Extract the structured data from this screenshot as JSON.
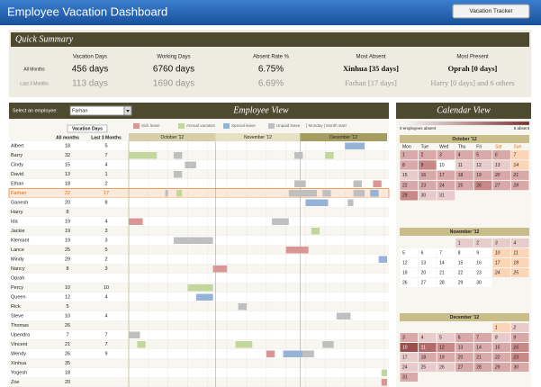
{
  "header": {
    "title": "Employee Vacation Dashboard",
    "button": "Vacation Tracker"
  },
  "summary": {
    "title": "Quick Summary",
    "row_labels": [
      "All Months",
      "Last 3 Months"
    ],
    "columns": [
      {
        "heading": "Vacation Days",
        "values": [
          "456 days",
          "113 days"
        ]
      },
      {
        "heading": "Working Days",
        "values": [
          "6760 days",
          "1690 days"
        ]
      },
      {
        "heading": "Absent Rate %",
        "values": [
          "6.75%",
          "6.69%"
        ]
      },
      {
        "heading": "Most Absent",
        "values": [
          "Xinhua [35 days]",
          "Farhan [17 days]"
        ]
      },
      {
        "heading": "Most Present",
        "values": [
          "Oprah [0 days]",
          "Harry [0 days] and 6 others"
        ]
      }
    ]
  },
  "employee_view": {
    "title": "Employee View",
    "select_label": "Select an employee:",
    "selected": "Farhan",
    "legend": [
      {
        "name": "Sick leave",
        "color": "#d99694"
      },
      {
        "name": "Annual vacation",
        "color": "#c3d69b"
      },
      {
        "name": "Special leave",
        "color": "#95b3d7"
      },
      {
        "name": "Unpaid leave",
        "color": "#bfbfbf"
      }
    ],
    "legend_note": "[ Monday | Month start",
    "table_title": "Vacation Days",
    "columns": [
      "All months",
      "Last 3 Months"
    ],
    "months": [
      "October '12",
      "November '12",
      "December '12"
    ],
    "rows": [
      {
        "name": "Albert",
        "all": 18,
        "last3": 5,
        "leaves": [
          [
            2,
            77,
            7
          ]
        ]
      },
      {
        "name": "Barry",
        "all": 32,
        "last3": 7,
        "leaves": [
          [
            1,
            0,
            10
          ],
          [
            3,
            16,
            3
          ],
          [
            3,
            59,
            3
          ],
          [
            1,
            70,
            3
          ]
        ]
      },
      {
        "name": "Cindy",
        "all": 15,
        "last3": 4,
        "leaves": [
          [
            3,
            20,
            4
          ]
        ]
      },
      {
        "name": "David",
        "all": 13,
        "last3": 1,
        "leaves": [
          [
            3,
            16,
            3
          ]
        ]
      },
      {
        "name": "Ethan",
        "all": 18,
        "last3": 2,
        "leaves": [
          [
            3,
            59,
            4
          ],
          [
            3,
            80,
            3
          ],
          [
            0,
            87,
            3
          ]
        ]
      },
      {
        "name": "Farhan",
        "all": 22,
        "last3": 17,
        "leaves": [
          [
            3,
            13,
            1
          ],
          [
            1,
            17,
            2
          ],
          [
            3,
            57,
            10
          ],
          [
            3,
            69,
            3
          ],
          [
            3,
            80,
            4
          ],
          [
            2,
            86,
            3
          ]
        ]
      },
      {
        "name": "Ganesh",
        "all": 20,
        "last3": 8,
        "leaves": [
          [
            2,
            63,
            8
          ],
          [
            3,
            78,
            2
          ]
        ]
      },
      {
        "name": "Harry",
        "all": 8,
        "last3": null,
        "leaves": []
      },
      {
        "name": "Ida",
        "all": 19,
        "last3": 4,
        "leaves": [
          [
            0,
            0,
            5
          ],
          [
            3,
            51,
            6
          ]
        ]
      },
      {
        "name": "Jackie",
        "all": 19,
        "last3": 3,
        "leaves": [
          [
            1,
            65,
            3
          ]
        ]
      },
      {
        "name": "Klemant",
        "all": 19,
        "last3": 3,
        "leaves": [
          [
            3,
            16,
            14
          ]
        ]
      },
      {
        "name": "Lance",
        "all": 25,
        "last3": 5,
        "leaves": [
          [
            0,
            56,
            8
          ]
        ]
      },
      {
        "name": "Mindy",
        "all": 29,
        "last3": 2,
        "leaves": [
          [
            2,
            89,
            3
          ]
        ]
      },
      {
        "name": "Nancy",
        "all": 8,
        "last3": 3,
        "leaves": [
          [
            0,
            30,
            5
          ]
        ]
      },
      {
        "name": "Oprah",
        "all": null,
        "last3": null,
        "leaves": []
      },
      {
        "name": "Percy",
        "all": 10,
        "last3": 10,
        "leaves": [
          [
            1,
            21,
            9
          ]
        ]
      },
      {
        "name": "Queen",
        "all": 12,
        "last3": 4,
        "leaves": [
          [
            2,
            24,
            6
          ]
        ]
      },
      {
        "name": "Rick",
        "all": 5,
        "last3": null,
        "leaves": [
          [
            3,
            39,
            3
          ]
        ]
      },
      {
        "name": "Steve",
        "all": 10,
        "last3": 4,
        "leaves": [
          [
            3,
            74,
            5
          ]
        ]
      },
      {
        "name": "Thomas",
        "all": 26,
        "last3": null,
        "leaves": []
      },
      {
        "name": "Upendra",
        "all": 7,
        "last3": 7,
        "leaves": [
          [
            3,
            0,
            4
          ]
        ]
      },
      {
        "name": "Vincent",
        "all": 21,
        "last3": 7,
        "leaves": [
          [
            1,
            3,
            3
          ],
          [
            1,
            38,
            6
          ],
          [
            3,
            69,
            4
          ]
        ]
      },
      {
        "name": "Wendy",
        "all": 26,
        "last3": 9,
        "leaves": [
          [
            0,
            49,
            3
          ],
          [
            2,
            55,
            7
          ],
          [
            3,
            62,
            4
          ]
        ]
      },
      {
        "name": "Xinhua",
        "all": 35,
        "last3": null,
        "leaves": []
      },
      {
        "name": "Yogesh",
        "all": 18,
        "last3": null,
        "leaves": [
          [
            1,
            90,
            2
          ]
        ]
      },
      {
        "name": "Zoe",
        "all": 20,
        "last3": null,
        "leaves": [
          [
            0,
            90,
            2
          ]
        ]
      }
    ]
  },
  "calendar": {
    "title": "Calendar View",
    "scale": [
      "0 employees absent",
      "6 absent"
    ],
    "weekdays": [
      "Mon",
      "Tue",
      "Wed",
      "Thu",
      "Fri",
      "Sat",
      "Sun"
    ],
    "months": [
      {
        "title": "October '12",
        "first_weekday": 0,
        "days": [
          1,
          2,
          3,
          4,
          5,
          6,
          7,
          8,
          9,
          10,
          11,
          12,
          13,
          14,
          15,
          16,
          17,
          18,
          19,
          20,
          21,
          22,
          23,
          24,
          25,
          26,
          27,
          28,
          29,
          30,
          31
        ],
        "absent": [
          2,
          2,
          2,
          2,
          2,
          2,
          0,
          2,
          3,
          0,
          1,
          1,
          1,
          0,
          1,
          2,
          2,
          2,
          2,
          2,
          2,
          2,
          2,
          2,
          2,
          3,
          2,
          2,
          3,
          1,
          1
        ]
      },
      {
        "title": "November '12",
        "first_weekday": 3,
        "days": [
          1,
          2,
          3,
          4,
          5,
          6,
          7,
          8,
          9,
          10,
          11,
          12,
          13,
          14,
          15,
          16,
          17,
          18,
          19,
          20,
          21,
          22,
          23,
          24,
          25,
          26,
          27,
          28,
          29,
          30
        ],
        "absent": [
          1,
          1,
          1,
          1,
          0,
          0,
          0,
          0,
          0,
          0,
          0,
          0,
          0,
          0,
          0,
          0,
          0,
          0,
          0,
          0,
          0,
          0,
          0,
          0,
          0,
          0,
          0,
          0,
          0,
          0
        ]
      },
      {
        "title": "December '12",
        "first_weekday": 5,
        "days": [
          1,
          2,
          3,
          4,
          5,
          6,
          7,
          8,
          9,
          10,
          11,
          12,
          13,
          14,
          15,
          16,
          17,
          18,
          19,
          20,
          21,
          22,
          23,
          24,
          25,
          26,
          27,
          28,
          29,
          30,
          31
        ],
        "absent": [
          0,
          1,
          2,
          1,
          1,
          2,
          2,
          1,
          2,
          5,
          4,
          3,
          2,
          2,
          2,
          3,
          1,
          2,
          2,
          2,
          2,
          2,
          3,
          1,
          1,
          1,
          2,
          2,
          2,
          2,
          2
        ]
      }
    ]
  }
}
